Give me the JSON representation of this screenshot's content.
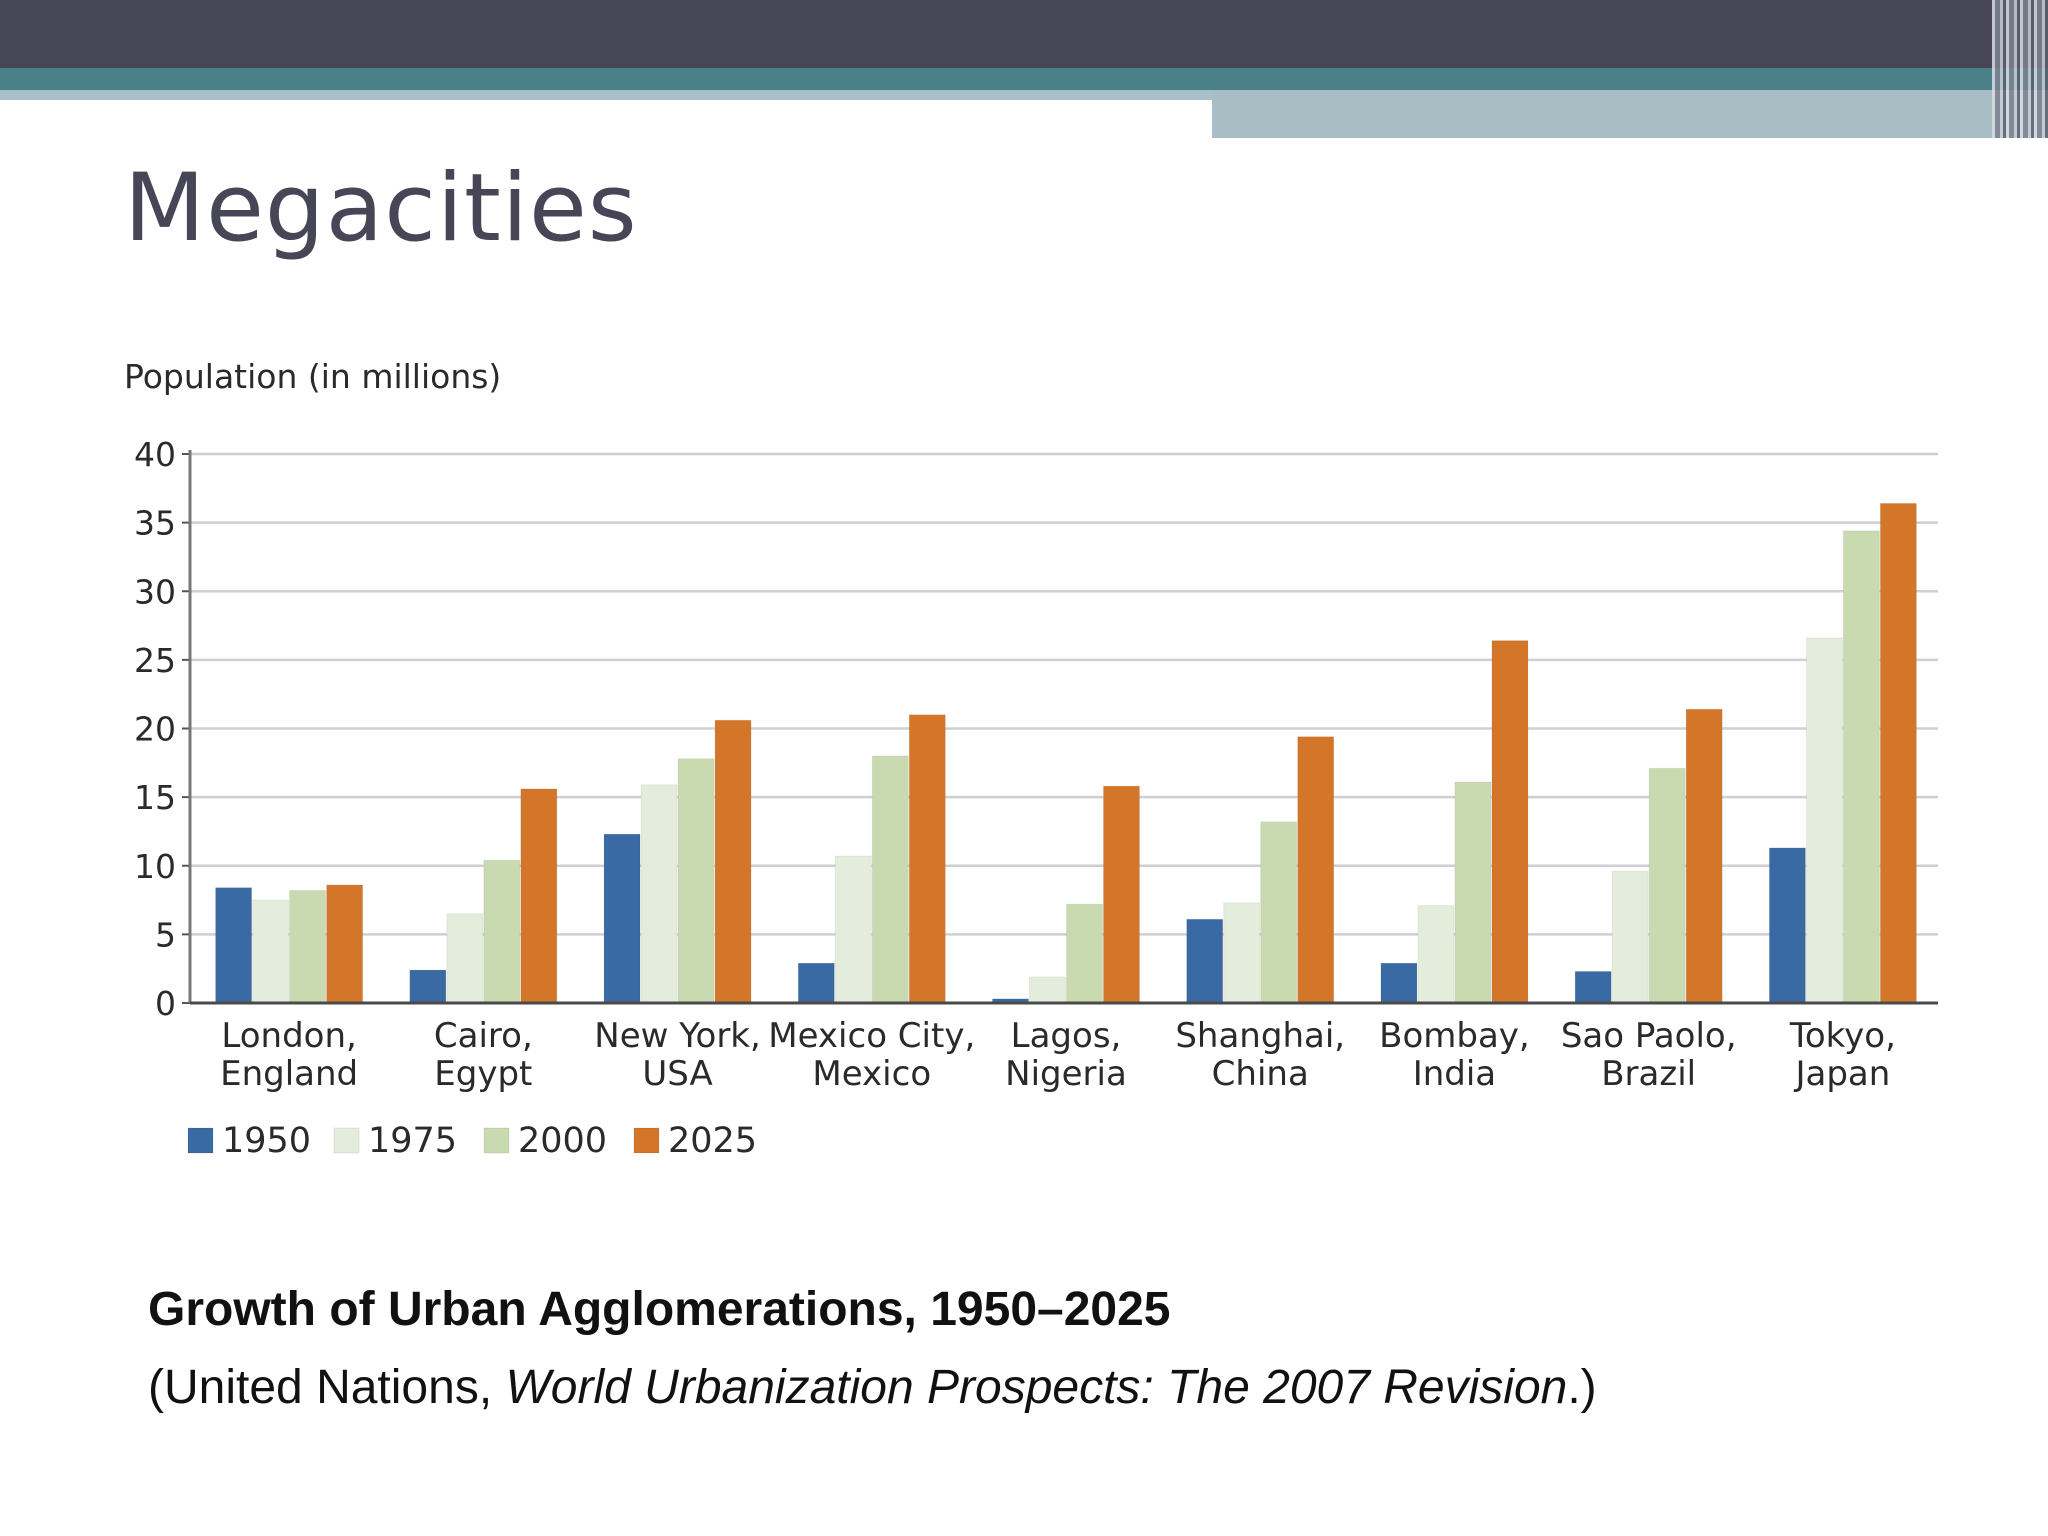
{
  "slide": {
    "title": "Megacities",
    "caption_title": "Growth of Urban Agglomerations, 1950–2025",
    "caption_source_prefix": "(United Nations, ",
    "caption_source_italic": "World Urbanization Prospects: The 2007 Revision",
    "caption_source_suffix": ".)"
  },
  "colors": {
    "header_dark": "#474657",
    "header_teal": "#4a8188",
    "header_light": "#a8bec4"
  },
  "chart_data": {
    "type": "bar",
    "title": "",
    "xlabel": "",
    "ylabel": "Population (in millions)",
    "ylim": [
      0,
      40
    ],
    "yticks": [
      0,
      5,
      10,
      15,
      20,
      25,
      30,
      35,
      40
    ],
    "grid": true,
    "legend_position": "bottom-left",
    "categories": [
      [
        "London,",
        "England"
      ],
      [
        "Cairo,",
        "Egypt"
      ],
      [
        "New York,",
        "USA"
      ],
      [
        "Mexico City,",
        "Mexico"
      ],
      [
        "Lagos,",
        "Nigeria"
      ],
      [
        "Shanghai,",
        "China"
      ],
      [
        "Bombay,",
        "India"
      ],
      [
        "Sao Paolo,",
        "Brazil"
      ],
      [
        "Tokyo,",
        "Japan"
      ]
    ],
    "series": [
      {
        "name": "1950",
        "color": "#3a6aa3",
        "values": [
          8.4,
          2.4,
          12.3,
          2.9,
          0.3,
          6.1,
          2.9,
          2.3,
          11.3
        ]
      },
      {
        "name": "1975",
        "color": "#e4ecdc",
        "values": [
          7.5,
          6.5,
          15.9,
          10.7,
          1.9,
          7.3,
          7.1,
          9.6,
          26.6
        ]
      },
      {
        "name": "2000",
        "color": "#c9dab0",
        "values": [
          8.2,
          10.4,
          17.8,
          18.0,
          7.2,
          13.2,
          16.1,
          17.1,
          34.4
        ]
      },
      {
        "name": "2025",
        "color": "#d4762a",
        "values": [
          8.6,
          15.6,
          20.6,
          21.0,
          15.8,
          19.4,
          26.4,
          21.4,
          36.4
        ]
      }
    ]
  }
}
